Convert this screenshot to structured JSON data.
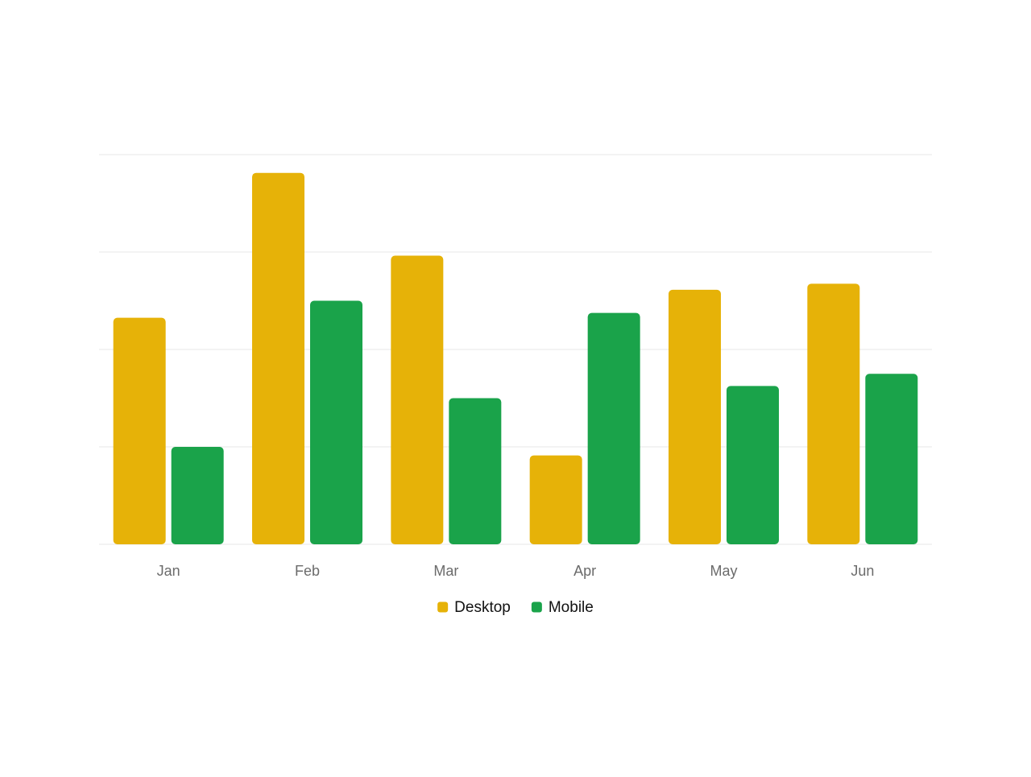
{
  "chart_data": {
    "type": "bar",
    "categories": [
      "Jan",
      "Feb",
      "Mar",
      "Apr",
      "May",
      "Jun"
    ],
    "series": [
      {
        "name": "Desktop",
        "color": "#e6b208",
        "values": [
          186,
          305,
          237,
          73,
          209,
          214
        ]
      },
      {
        "name": "Mobile",
        "color": "#1aa34a",
        "values": [
          80,
          200,
          120,
          190,
          130,
          140
        ]
      }
    ],
    "ylim": [
      0,
      320
    ],
    "ytick_step": 80,
    "grid": true,
    "show_y_tick_labels": false,
    "legend_position": "bottom-center",
    "colors": {
      "grid": "#ececec",
      "tick_text": "#6b6b6b",
      "legend_text": "#111111"
    }
  }
}
